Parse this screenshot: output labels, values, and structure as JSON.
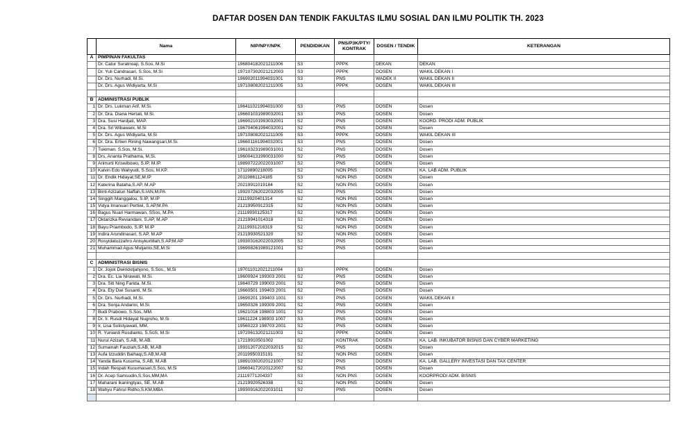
{
  "title": "DAFTAR DOSEN DAN TENDIK FAKULTAS ILMU SOSIAL DAN ILMU POLITIK TH. 2023",
  "table": {
    "columns": [
      "Nama",
      "NIP/NPY/NPK",
      "PENDIDIKAN",
      "PNS/P3K/PTY/ KONTRAK",
      "DOSEN / TENDIK",
      "KETERANGAN"
    ],
    "sections": [
      {
        "letter": "A",
        "name": "PIMPINAN FAKULTAS",
        "rows": [
          {
            "no": "",
            "nama": "Dr. Catur Suratnoaji, S.Sos, M.Si",
            "nip": "196804182021211006",
            "pendidikan": "S3",
            "status": "PPPK",
            "dosen_tendik": "DEKAN",
            "keterangan": "DEKAN"
          },
          {
            "no": "",
            "nama": "Dr. Yuli Candrasari, S.Sos, M.Si",
            "nip": "197107302021212003",
            "pendidikan": "S3",
            "status": "PPPK",
            "dosen_tendik": "DOSEN",
            "keterangan": "WAKIL DEKAN I"
          },
          {
            "no": "",
            "nama": "Dr. Drs. Nurhadi, M.Si.",
            "nip": "196902011994031001",
            "pendidikan": "S3",
            "status": "PNS",
            "dosen_tendik": "WADEK II",
            "keterangan": "WAKIL DEKAN II"
          },
          {
            "no": "",
            "nama": "Dr. Drs. Agus Widiyarta, M.Si",
            "nip": "197108082021211005",
            "pendidikan": "S3",
            "status": "PPPK",
            "dosen_tendik": "DOSEN",
            "keterangan": "WAKIL DEKAN III"
          }
        ]
      },
      {
        "letter": "B",
        "name": "ADMINISTRASI PUBLIK",
        "rows": [
          {
            "no": "1",
            "nama": "Dr. Drs. Lukman Arif, M.Si.",
            "nip": "196411021994031000",
            "pendidikan": "S3",
            "status": "PNS",
            "dosen_tendik": "DOSEN",
            "keterangan": "Dosen"
          },
          {
            "no": "2",
            "nama": "Dr. Dra. Diana Hertati, M.Si.",
            "nip": "196601031989032001",
            "pendidikan": "S3",
            "status": "PNS",
            "dosen_tendik": "DOSEN",
            "keterangan": "Dosen"
          },
          {
            "no": "3",
            "nama": "Dra. Susi Hardjati, MAP.",
            "nip": "196902101993032001",
            "pendidikan": "S2",
            "status": "PNS",
            "dosen_tendik": "DOSEN",
            "keterangan": "KOORD. PRODI ADM. PUBLIK"
          },
          {
            "no": "4",
            "nama": "Dra. Sri Wibawani, M.Si",
            "nip": "196704061994032001",
            "pendidikan": "S2",
            "status": "PNS",
            "dosen_tendik": "DOSEN",
            "keterangan": "Dosen"
          },
          {
            "no": "5",
            "nama": "Dr. Drs. Agus Widiyarta, M.Si",
            "nip": "197108082021211005",
            "pendidikan": "S3",
            "status": "PPPK",
            "dosen_tendik": "DOSEN",
            "keterangan": "WAKIL DEKAN III"
          },
          {
            "no": "6",
            "nama": "Dr. Dra. Ertien Rining Nawangsari,M.Si.",
            "nip": "196601161994032001",
            "pendidikan": "S3",
            "status": "PNS",
            "dosen_tendik": "DOSEN",
            "keterangan": "Dosen"
          },
          {
            "no": "7",
            "nama": "Tukiman. S.Sos, M.Si.",
            "nip": "196103231989031001",
            "pendidikan": "S2",
            "status": "PNS",
            "dosen_tendik": "DOSEN",
            "keterangan": "Dosen"
          },
          {
            "no": "8",
            "nama": "Drs, Ananta Prathama, M,Si.",
            "nip": "196004131990031000",
            "pendidikan": "S2",
            "status": "PNS",
            "dosen_tendik": "DOSEN",
            "keterangan": "Dosen"
          },
          {
            "no": "9",
            "nama": "Arimurti Kriswibowo, S.IP, M.IP.",
            "nip": "198907222022031007",
            "pendidikan": "S2",
            "status": "PNS",
            "dosen_tendik": "DOSEN",
            "keterangan": "Dosen"
          },
          {
            "no": "10",
            "nama": "Kalvin Edo Wahyudi, S.Sos, M.KP.",
            "nip": "17119890218005",
            "pendidikan": "S2",
            "status": "NON PNS",
            "dosen_tendik": "DOSEN",
            "keterangan": "KA. LAB ADM. PUBLIK"
          },
          {
            "no": "11",
            "nama": "Dr. Endik Hidayat,SE,M.IP",
            "nip": "20119861124185",
            "pendidikan": "S3",
            "status": "NON PNS",
            "dosen_tendik": "DOSEN",
            "keterangan": "Dosen"
          },
          {
            "no": "12",
            "nama": "Katerina Bataha,S.AP, M.AP",
            "nip": "20219911019184",
            "pendidikan": "S2",
            "status": "NON PNS",
            "dosen_tendik": "DOSEN",
            "keterangan": "Dosen"
          },
          {
            "no": "13",
            "nama": "Binti Azizatun Naffah,S.IAN,M.PA",
            "nip": "199207262022032005",
            "pendidikan": "S2",
            "status": "PNS",
            "dosen_tendik": "DOSEN",
            "keterangan": "Dosen"
          },
          {
            "no": "14",
            "nama": "Singgih Manggalou, S.IP, M.IP",
            "nip": "21119920401314",
            "pendidikan": "S2",
            "status": "NON PNS",
            "dosen_tendik": "DOSEN",
            "keterangan": "Dosen"
          },
          {
            "no": "15",
            "nama": "Vidya Imanuari Pertiwi, S.AP,M.PA",
            "nip": "21219950912315",
            "pendidikan": "S2",
            "status": "NON PNS",
            "dosen_tendik": "DOSEN",
            "keterangan": "Dosen"
          },
          {
            "no": "16",
            "nama": "Bagus Nuari Harmawan, SSos, M.PA",
            "nip": "21119930125317",
            "pendidikan": "S2",
            "status": "NON PNS",
            "dosen_tendik": "DOSEN",
            "keterangan": "Dosen"
          },
          {
            "no": "17",
            "nama": "Oktarizka Reviandani, S.AP, M.AP",
            "nip": "21219941014318",
            "pendidikan": "S2",
            "status": "NON PNS",
            "dosen_tendik": "DOSEN",
            "keterangan": "Dosen"
          },
          {
            "no": "18",
            "nama": "Bayu Priambodo, S.IP, M.IP",
            "nip": "21119931216319",
            "pendidikan": "S2",
            "status": "NON PNS",
            "dosen_tendik": "DOSEN",
            "keterangan": "Dosen"
          },
          {
            "no": "19",
            "nama": "Indira Arundinasari, S.AP, M.AP",
            "nip": "21219930521320",
            "pendidikan": "S2",
            "status": "NON PNS",
            "dosen_tendik": "DOSEN",
            "keterangan": "Dosen"
          },
          {
            "no": "20",
            "nama": "Rosyidatuzzahro Anisykurlillah,S.AP,M.AP",
            "nip": "199303162022032005",
            "pendidikan": "S2",
            "status": "PNS",
            "dosen_tendik": "DOSEN",
            "keterangan": "Dosen"
          },
          {
            "no": "21",
            "nama": "Muhammad Agus Muljanto,SE,M.Si",
            "nip": "196908261989121001",
            "pendidikan": "S2",
            "status": "PNS",
            "dosen_tendik": "DOSEN",
            "keterangan": "Dosen"
          }
        ]
      },
      {
        "letter": "C",
        "name": "ADMINISTRASI BISNIS",
        "rows": [
          {
            "no": "1",
            "nama": "Dr. Jojok Dwiridotjahjono, S.Sos., M.Si",
            "nip": "197011012021211004",
            "pendidikan": "S3",
            "status": "PPPK",
            "dosen_tendik": "DOSEN",
            "keterangan": "Dosen"
          },
          {
            "no": "2",
            "nama": "Dra. Ec. Lia Nirawati, M.Si.",
            "nip": "19600924 199303 2001",
            "pendidikan": "S2",
            "status": "PNS",
            "dosen_tendik": "DOSEN",
            "keterangan": "Dosen"
          },
          {
            "no": "3",
            "nama": "Dra. Siti Ning Farida. M.Si.",
            "nip": "19640729 199003 2001",
            "pendidikan": "S2",
            "status": "PNS",
            "dosen_tendik": "DOSEN",
            "keterangan": "Dosen"
          },
          {
            "no": "4",
            "nama": "Dra. Ety Dwi Susanti, M.Si.",
            "nip": "19660501 199403 2001",
            "pendidikan": "S2",
            "status": "PNS",
            "dosen_tendik": "DOSEN",
            "keterangan": "Dosen"
          },
          {
            "no": "5",
            "nama": "Dr. Drs. Nurhadi, M.Si.",
            "nip": "19690201 199403 1001",
            "pendidikan": "S3",
            "status": "PNS",
            "dosen_tendik": "DOSEN",
            "keterangan": "WAKIL DEKAN II"
          },
          {
            "no": "6",
            "nama": "Dra. Sonja Andarini, M.Si.",
            "nip": "19650326 199309 2001",
            "pendidikan": "S2",
            "status": "PNS",
            "dosen_tendik": "DOSEN",
            "keterangan": "Dosen"
          },
          {
            "no": "7",
            "nama": "Budi Prabowo, S.Sos, MM.",
            "nip": "19621016 198803 1001",
            "pendidikan": "S2",
            "status": "PNS",
            "dosen_tendik": "DOSEN",
            "keterangan": "Dosen"
          },
          {
            "no": "8",
            "nama": "Dr. Ir. Rusdi Hidayat Nugroho, M.Si",
            "nip": "19611224 198903 1007",
            "pendidikan": "S3",
            "status": "PNS",
            "dosen_tendik": "DOSEN",
            "keterangan": "Dosen"
          },
          {
            "no": "9",
            "nama": "Ir, Lisa Sulistyawati, MM.",
            "nip": "19560223 198703 2001",
            "pendidikan": "S2",
            "status": "PNS",
            "dosen_tendik": "DOSEN",
            "keterangan": "Dosen"
          },
          {
            "no": "10",
            "nama": "R. Yuniardi Rusdianto, S.SoS, M.Si",
            "nip": "197206132021211003",
            "pendidikan": "S2",
            "status": "PPPK",
            "dosen_tendik": "DOSEN",
            "keterangan": "Dosen"
          },
          {
            "no": "11",
            "nama": "Nurul Azizah, S.AB, M.AB.",
            "nip": "17219910501002",
            "pendidikan": "S2",
            "status": "KONTRAK",
            "dosen_tendik": "DOSEN",
            "keterangan": "KA. LAB. INKUBATOR BISNIS DAN CYBER MARKETING"
          },
          {
            "no": "12",
            "nama": "Sumainah Fauziah,S.AB, M.AB",
            "nip": "199312072022032015",
            "pendidikan": "S2",
            "status": "PNS",
            "dosen_tendik": "DOSEN",
            "keterangan": "Dosen"
          },
          {
            "no": "13",
            "nama": "Aufa Izzuddin Baihaqi,S.AB,M.AB",
            "nip": "20119950315191",
            "pendidikan": "S2",
            "status": "NON PNS",
            "dosen_tendik": "DOSEN",
            "keterangan": "Dosen"
          },
          {
            "no": "14",
            "nama": "Yanda Bara Kusuma, S.AB, M.AB",
            "nip": "198910302020121007",
            "pendidikan": "S2",
            "status": "PNS",
            "dosen_tendik": "DOSEN",
            "keterangan": "KA. LAB. GALLERY INVESTASI DAN TAX CENTER"
          },
          {
            "no": "15",
            "nama": "Indah Respati Kusumasari,S.Sos, M.Si",
            "nip": "196604172020122007",
            "pendidikan": "S2",
            "status": "PNS",
            "dosen_tendik": "DOSEN",
            "keterangan": "Dosen"
          },
          {
            "no": "16",
            "nama": "Dr. Acep Samsudin,S.Sos,MM,MA",
            "nip": "21119771204337",
            "pendidikan": "S3",
            "status": "NON PNS",
            "dosen_tendik": "DOSEN",
            "keterangan": "KOORPRODI ADM. BISNIS"
          },
          {
            "no": "17",
            "nama": "Maharani Ikaningtyas, SE, M.AB",
            "nip": "21219920526338",
            "pendidikan": "S2",
            "status": "NON PNS",
            "dosen_tendik": "DOSEN",
            "keterangan": "Dosen"
          },
          {
            "no": "18",
            "nama": "Wahyu Fahrul Ridho,S.KM,MBA",
            "nip": "199309162022031011",
            "pendidikan": "S2",
            "status": "PNS",
            "dosen_tendik": "DOSEN",
            "keterangan": "Dosen"
          }
        ]
      }
    ]
  }
}
